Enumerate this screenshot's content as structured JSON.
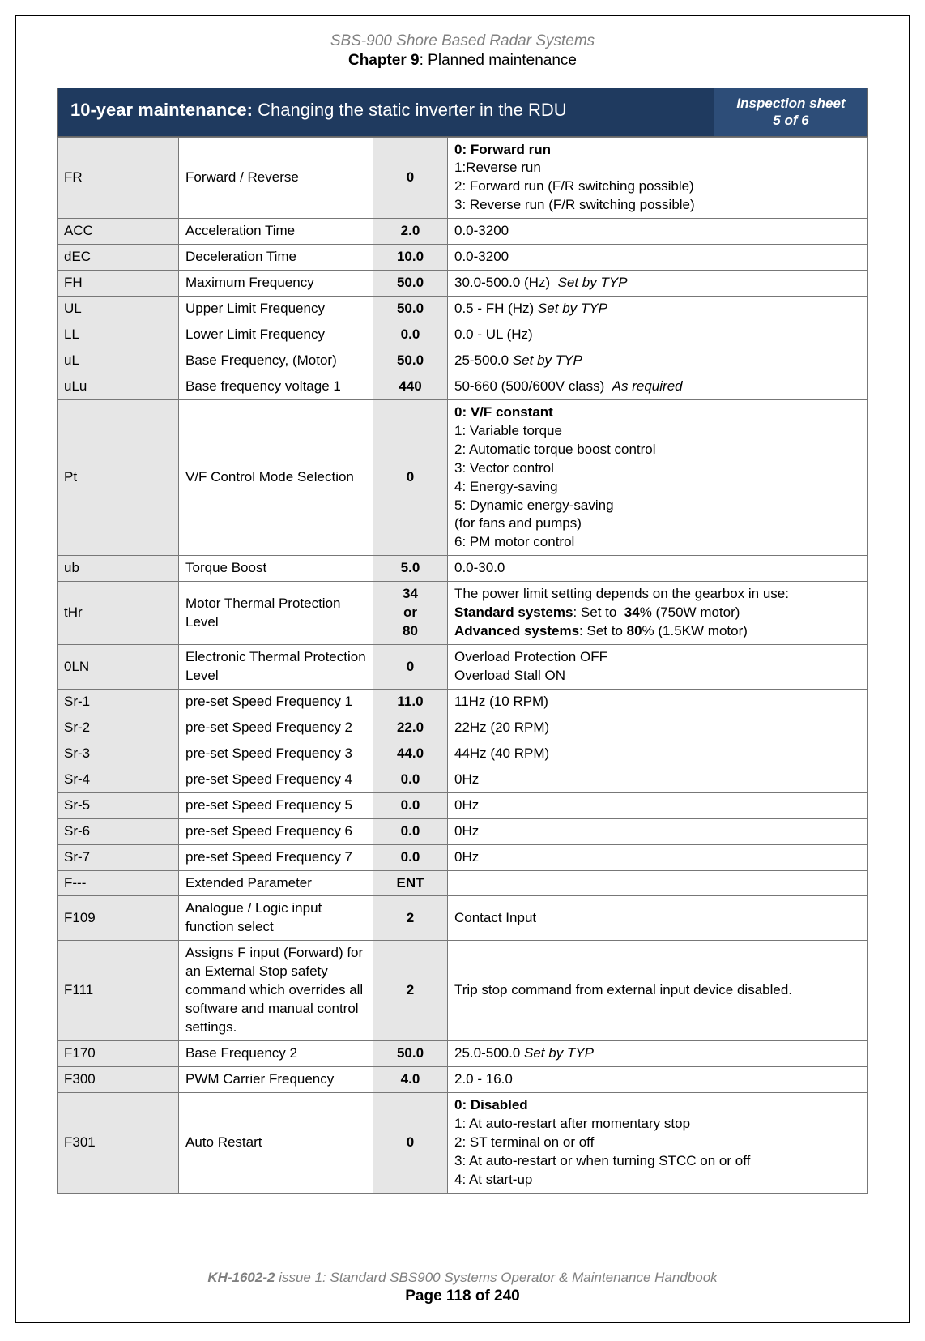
{
  "header": {
    "doc_title": "SBS-900 Shore Based Radar Systems",
    "chapter_label": "Chapter 9",
    "chapter_title": ": Planned maintenance"
  },
  "banner": {
    "bold": "10-year maintenance:",
    "rest": " Changing the static inverter in the RDU",
    "sheet_label": "Inspection sheet",
    "sheet_num": "5 of 6"
  },
  "rows": [
    {
      "code": "FR",
      "name": "Forward / Reverse",
      "value": "0",
      "desc": "<b>0: Forward run</b><br>1:Reverse run<br>2: Forward run (F/R switching possible)<br>3: Reverse run (F/R switching possible)"
    },
    {
      "code": "ACC",
      "name": "Acceleration Time",
      "value": "2.0",
      "desc": "0.0-3200"
    },
    {
      "code": " dEC",
      "name": "Deceleration Time",
      "value": "10.0",
      "desc": "0.0-3200"
    },
    {
      "code": "FH",
      "name": "Maximum Frequency",
      "value": "50.0",
      "desc": "30.0-500.0 (Hz)&nbsp;&nbsp;<i>Set by TYP</i>"
    },
    {
      "code": "UL",
      "name": "Upper Limit Frequency",
      "value": "50.0",
      "desc": "0.5 - FH (Hz) <i>Set by TYP</i>"
    },
    {
      "code": "LL",
      "name": "Lower Limit Frequency",
      "value": "0.0",
      "desc": "0.0 - UL (Hz)"
    },
    {
      "code": "uL",
      "name": "Base Frequency, (Motor)",
      "value": "50.0",
      "desc": "25-500.0 <i>Set by TYP</i>"
    },
    {
      "code": "uLu",
      "name": "Base frequency voltage 1",
      "value": "440",
      "desc": "50-660 (500/600V class)&nbsp;&nbsp;<i>As required</i>"
    },
    {
      "code": "Pt",
      "name": "V/F Control Mode Selection",
      "value": "0",
      "desc": "<b>0: V/F constant</b><br>1: Variable torque<br>2: Automatic torque boost control<br>3: Vector control<br>4: Energy-saving<br>5: Dynamic energy-saving<br>(for fans and pumps)<br>6: PM motor control"
    },
    {
      "code": "ub",
      "name": "Torque Boost",
      "value": "5.0",
      "desc": "0.0-30.0"
    },
    {
      "code": "tHr",
      "name": "Motor Thermal Protection Level",
      "value": "34<br>or<br>80",
      "desc": "The power limit setting depends on the gearbox in use:<br><b>Standard systems</b>: Set to &nbsp;<b>34</b>% (750W motor)<br><b>Advanced systems</b>: Set to <b>80</b>% (1.5KW motor)"
    },
    {
      "code": "0LN",
      "name": "Electronic Thermal Protection Level",
      "value": "0",
      "desc": "Overload Protection OFF<br>Overload Stall ON"
    },
    {
      "code": "Sr-1",
      "name": "pre-set Speed Frequency 1",
      "value": "11.0",
      "desc": "11Hz (10 RPM)"
    },
    {
      "code": "Sr-2",
      "name": "pre-set Speed Frequency 2",
      "value": "22.0",
      "desc": "22Hz (20 RPM)"
    },
    {
      "code": "Sr-3",
      "name": "pre-set Speed Frequency 3",
      "value": "44.0",
      "desc": "44Hz (40 RPM)"
    },
    {
      "code": "Sr-4",
      "name": "pre-set Speed Frequency 4",
      "value": "0.0",
      "desc": "0Hz"
    },
    {
      "code": "Sr-5",
      "name": "pre-set Speed Frequency 5",
      "value": "0.0",
      "desc": "0Hz"
    },
    {
      "code": "Sr-6",
      "name": "pre-set Speed Frequency 6",
      "value": "0.0",
      "desc": "0Hz"
    },
    {
      "code": "Sr-7",
      "name": "pre-set Speed Frequency 7",
      "value": "0.0",
      "desc": "0Hz"
    },
    {
      "code": "F---",
      "name": "Extended Parameter",
      "value": "ENT",
      "desc": ""
    },
    {
      "code": "F109",
      "name": "Analogue / Logic input function select",
      "value": "2",
      "desc": "Contact Input"
    },
    {
      "code": "F111",
      "name": "Assigns F input (Forward) for an External Stop safety command which overrides all software and manual control settings.",
      "value": "2",
      "desc": "Trip stop command from external input device disabled."
    },
    {
      "code": "F170",
      "name": "Base Frequency 2",
      "value": "50.0",
      "desc": "25.0-500.0 <i>Set by TYP</i>"
    },
    {
      "code": "F300",
      "name": "PWM Carrier Frequency",
      "value": "4.0",
      "desc": "2.0 - 16.0"
    },
    {
      "code": "F301",
      "name": "Auto Restart",
      "value": "0",
      "desc": "<b>0: Disabled</b><br>1: At auto-restart after momentary stop<br>2: ST terminal on or off<br>3: At auto-restart or when turning STCC on or off<br>4: At start-up"
    }
  ],
  "footer": {
    "docnum": "KH-1602-2",
    "rest": " issue 1: Standard SBS900 Systems Operator & Maintenance Handbook",
    "page": "Page 118 of 240"
  },
  "colors": {
    "banner_main": "#1f3a5f",
    "banner_side": "#2d4d78",
    "grey_cell": "#e6e6e6",
    "border": "#777777",
    "header_grey": "#808080"
  }
}
